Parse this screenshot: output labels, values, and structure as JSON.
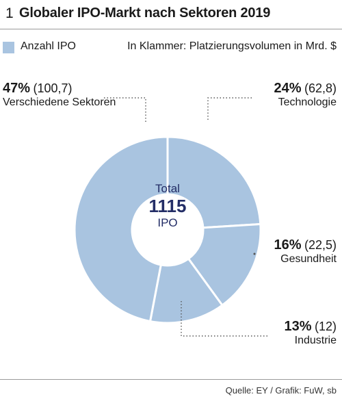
{
  "header": {
    "number": "1",
    "title": "Globaler IPO-Markt nach Sektoren 2019"
  },
  "legend": {
    "label": "Anzahl IPO",
    "note": "In Klammer: Platzierungsvolumen in Mrd. $"
  },
  "colors": {
    "slice": "#a9c4e0",
    "center_text": "#232d66",
    "leader": "#555555"
  },
  "center": {
    "total_label": "Total",
    "total_value": "1115",
    "unit": "IPO"
  },
  "chart_data": {
    "type": "pie",
    "title": "Globaler IPO-Markt nach Sektoren 2019",
    "total": 1115,
    "slices": [
      {
        "name": "Verschiedene Sektoren",
        "percent_label": "47%",
        "volume_label": "(100,7)",
        "percent": 47,
        "volume": 100.7
      },
      {
        "name": "Technologie",
        "percent_label": "24%",
        "volume_label": "(62,8)",
        "percent": 24,
        "volume": 62.8
      },
      {
        "name": "Gesundheit",
        "percent_label": "16%",
        "volume_label": "(22,5)",
        "percent": 16,
        "volume": 22.5
      },
      {
        "name": "Industrie",
        "percent_label": "13%",
        "volume_label": "(12)",
        "percent": 13,
        "volume": 12
      }
    ]
  },
  "source": "Quelle: EY / Grafik: FuW, sb"
}
